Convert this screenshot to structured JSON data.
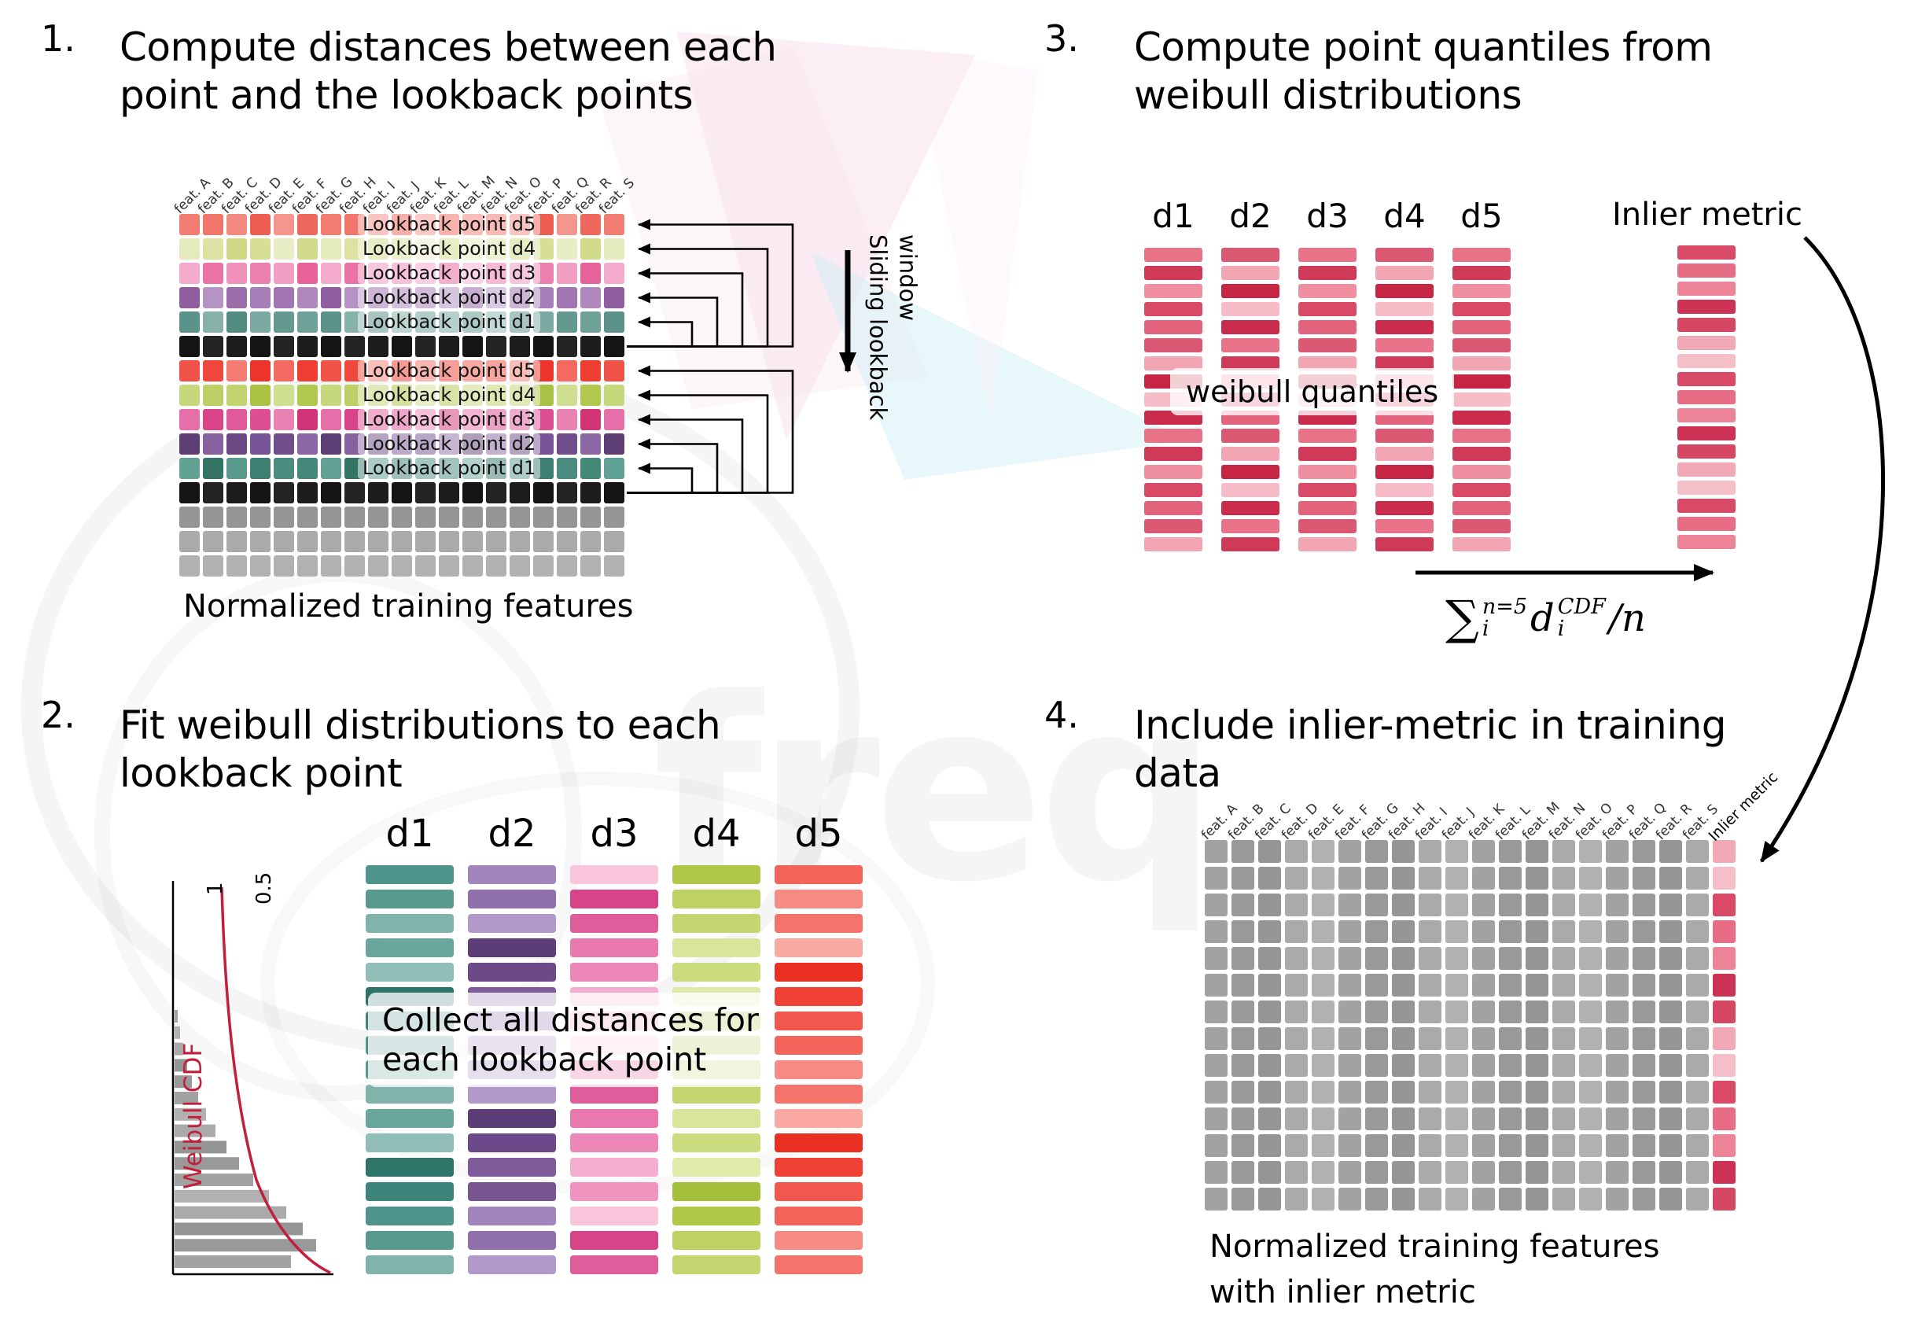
{
  "features": [
    "feat. A",
    "feat. B",
    "feat. C",
    "feat. D",
    "feat. E",
    "feat. F",
    "feat. G",
    "feat. H",
    "feat. I",
    "feat. J",
    "feat. K",
    "feat. L",
    "feat. M",
    "feat. N",
    "feat. O",
    "feat. P",
    "feat. Q",
    "feat. R",
    "feat. S"
  ],
  "watermark": {
    "text": "freq"
  },
  "colors": {
    "cdf_curve": "#c21f3c",
    "arrow": "#000000"
  },
  "panel1": {
    "number": "1.",
    "title_line1": "Compute distances between each",
    "title_line2": "point and the lookback points",
    "caption": "Normalized training features",
    "sliding_label": "Sliding lookback window",
    "rows": [
      {
        "family": "d5a",
        "label": "Lookback point d5"
      },
      {
        "family": "d4a",
        "label": "Lookback point d4"
      },
      {
        "family": "d3a",
        "label": "Lookback point d3"
      },
      {
        "family": "d2a",
        "label": "Lookback point d2"
      },
      {
        "family": "d1a",
        "label": "Lookback point d1"
      },
      {
        "family": "black"
      },
      {
        "family": "d5b",
        "label": "Lookback point d5"
      },
      {
        "family": "d4b",
        "label": "Lookback point d4"
      },
      {
        "family": "d3b",
        "label": "Lookback point d3"
      },
      {
        "family": "d2b",
        "label": "Lookback point d2"
      },
      {
        "family": "d1b",
        "label": "Lookback point d1"
      },
      {
        "family": "black"
      },
      {
        "family": "gray"
      },
      {
        "family": "gray"
      },
      {
        "family": "gray"
      }
    ]
  },
  "panel2": {
    "number": "2.",
    "title_line1": "Fit weibull distributions to each",
    "title_line2": "lookback point",
    "overlay_line1": "Collect all distances for",
    "overlay_line2": "each lookback point",
    "cdf_label": "Weibull CDF",
    "tick1": "1",
    "tick05": "0.5",
    "bars_per_column": 17,
    "hist_bars": [
      4,
      7,
      11,
      16,
      22,
      30,
      40,
      52,
      66,
      82,
      100,
      120,
      142,
      163,
      180,
      148
    ],
    "columns": [
      {
        "name": "d1",
        "family": "c1"
      },
      {
        "name": "d2",
        "family": "c2"
      },
      {
        "name": "d3",
        "family": "c3"
      },
      {
        "name": "d4",
        "family": "c4"
      },
      {
        "name": "d5",
        "family": "c5"
      }
    ]
  },
  "panel3": {
    "number": "3.",
    "title_line1": "Compute point quantiles from",
    "title_line2": "weibull distributions",
    "columns": [
      "d1",
      "d2",
      "d3",
      "d4",
      "d5"
    ],
    "bars_per_column": 17,
    "overlay": "weibull quantiles",
    "inlier_label": "Inlier metric",
    "formula": {
      "sigma": "∑",
      "upper": "n=5",
      "lower": "i",
      "var": "d",
      "var_upper": "CDF",
      "var_lower": "i",
      "tail": "/n"
    }
  },
  "panel4": {
    "number": "4.",
    "title_line1": "Include inlier-metric in training",
    "title_line2": "data",
    "caption_line1": "Normalized training features",
    "caption_line2": "with inlier metric",
    "inlier_label": "Inlier metric",
    "row_count": 14
  },
  "palettes": {
    "d5a": [
      "#f37c72",
      "#ef685d",
      "#f5968d",
      "#ee5e53",
      "#f28a80",
      "#f1756b"
    ],
    "d4a": [
      "#dce3a2",
      "#e4eabb",
      "#d2db8b",
      "#e8edc6",
      "#d7df96",
      "#cfd985"
    ],
    "d3a": [
      "#ef91ba",
      "#ea72a4",
      "#f3aacb",
      "#e7619a",
      "#f1a0c3",
      "#ec81af"
    ],
    "d2a": [
      "#a77fb8",
      "#9a6dab",
      "#b593c4",
      "#8f5da0",
      "#af89be",
      "#a276b3"
    ],
    "d1a": [
      "#64998f",
      "#7aaaa1",
      "#528b80",
      "#86b2aa",
      "#5b9289",
      "#6fa198"
    ],
    "d5b": [
      "#f25348",
      "#ee3d31",
      "#f56a60",
      "#ec342a",
      "#f47c73",
      "#f0483d"
    ],
    "d4b": [
      "#bcd066",
      "#c6d87c",
      "#b0c84e",
      "#cfdf90",
      "#a9c243",
      "#c1d470"
    ],
    "d3b": [
      "#e0599b",
      "#d94489",
      "#e76fa9",
      "#d23478",
      "#eb82b4",
      "#dd4f92"
    ],
    "d2b": [
      "#775495",
      "#694883",
      "#85629f",
      "#5e3f75",
      "#8b68a5",
      "#704d8c"
    ],
    "d1b": [
      "#4a8d80",
      "#3d8072",
      "#589a8c",
      "#347467",
      "#62a294",
      "#44887a"
    ],
    "black": [
      "#1c1c1c",
      "#242424",
      "#151515"
    ],
    "gray": [
      "#a2a2a2",
      "#aaaaaa",
      "#999999",
      "#b1b1b1",
      "#959595"
    ],
    "q": [
      "#e87288",
      "#d84a66",
      "#f2a6b4",
      "#c92c4d",
      "#ef8fa0",
      "#db5872",
      "#f6bcc7",
      "#ce3a58",
      "#e2637b",
      "#c72544"
    ],
    "inl": [
      "#ec8396",
      "#d84a66",
      "#f2a9b7",
      "#cb3254",
      "#e66d84",
      "#f5bfca",
      "#d64764"
    ],
    "c1": [
      "#4f948a",
      "#69a69c",
      "#3d857a",
      "#80b3aa",
      "#2f7468",
      "#599a8f",
      "#90bdb5"
    ],
    "c2": [
      "#7e5b9b",
      "#8f70ac",
      "#6c4a89",
      "#a285bb",
      "#5d3d78",
      "#775490",
      "#b19aca"
    ],
    "c3": [
      "#e878ae",
      "#ef95c0",
      "#e05d9c",
      "#f5aed0",
      "#d84488",
      "#ec87b7",
      "#f8c5dc"
    ],
    "c4": [
      "#bed263",
      "#cbdc7e",
      "#b0c84a",
      "#d8e59a",
      "#a4bf3a",
      "#c4d66f",
      "#dfeaab"
    ],
    "c5": [
      "#f2574d",
      "#f4736a",
      "#ef4136",
      "#f68b84",
      "#ea2f23",
      "#f3645a",
      "#f9a8a2"
    ]
  }
}
